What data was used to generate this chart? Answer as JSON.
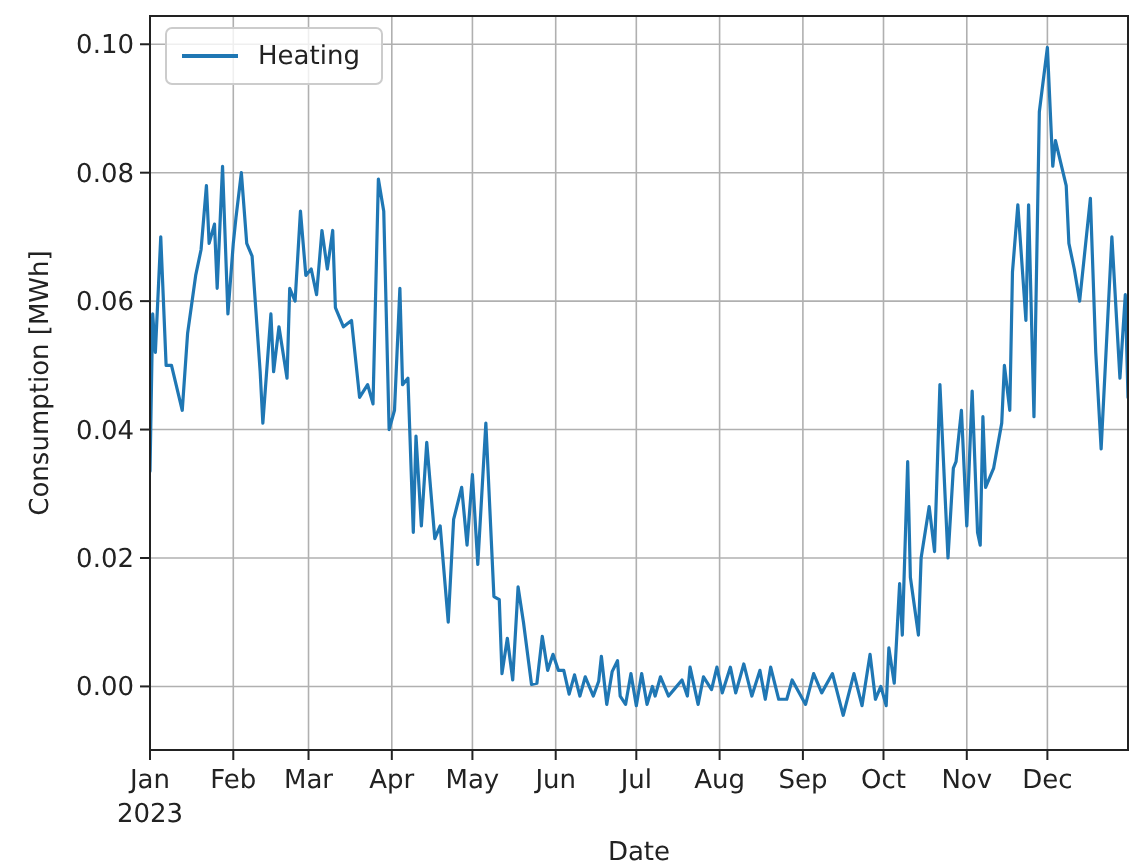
{
  "chart_data": {
    "type": "line",
    "xlabel": "Date",
    "ylabel": "Consumption [MWh]",
    "legend": "top left",
    "grid": true,
    "xlim": [
      "2023-01-01",
      "2023-12-31"
    ],
    "ylim": [
      -0.0099,
      0.1044
    ],
    "xticks": [
      {
        "value": "2023-01-01",
        "label": "Jan\n2023"
      },
      {
        "value": "2023-02-01",
        "label": "Feb"
      },
      {
        "value": "2023-03-01",
        "label": "Mar"
      },
      {
        "value": "2023-04-01",
        "label": "Apr"
      },
      {
        "value": "2023-05-01",
        "label": "May"
      },
      {
        "value": "2023-06-01",
        "label": "Jun"
      },
      {
        "value": "2023-07-01",
        "label": "Jul"
      },
      {
        "value": "2023-08-01",
        "label": "Aug"
      },
      {
        "value": "2023-09-01",
        "label": "Sep"
      },
      {
        "value": "2023-10-01",
        "label": "Oct"
      },
      {
        "value": "2023-11-01",
        "label": "Nov"
      },
      {
        "value": "2023-12-01",
        "label": "Dec"
      }
    ],
    "yticks": [
      {
        "value": 0,
        "label": "0.00"
      },
      {
        "value": 0.02,
        "label": "0.02"
      },
      {
        "value": 0.04,
        "label": "0.04"
      },
      {
        "value": 0.06,
        "label": "0.06"
      },
      {
        "value": 0.08,
        "label": "0.08"
      },
      {
        "value": 0.1,
        "label": "0.10"
      }
    ],
    "x": [
      "2023-01-01",
      "2023-01-02",
      "2023-01-03",
      "2023-01-05",
      "2023-01-07",
      "2023-01-09",
      "2023-01-13",
      "2023-01-15",
      "2023-01-18",
      "2023-01-20",
      "2023-01-22",
      "2023-01-23",
      "2023-01-25",
      "2023-01-26",
      "2023-01-28",
      "2023-01-30",
      "2023-02-01",
      "2023-02-02",
      "2023-02-04",
      "2023-02-06",
      "2023-02-08",
      "2023-02-11",
      "2023-02-12",
      "2023-02-15",
      "2023-02-16",
      "2023-02-18",
      "2023-02-21",
      "2023-02-22",
      "2023-02-24",
      "2023-02-26",
      "2023-02-28",
      "2023-03-02",
      "2023-03-04",
      "2023-03-06",
      "2023-03-08",
      "2023-03-10",
      "2023-03-11",
      "2023-03-14",
      "2023-03-17",
      "2023-03-20",
      "2023-03-23",
      "2023-03-25",
      "2023-03-27",
      "2023-03-29",
      "2023-03-31",
      "2023-04-02",
      "2023-04-04",
      "2023-04-05",
      "2023-04-07",
      "2023-04-09",
      "2023-04-10",
      "2023-04-12",
      "2023-04-14",
      "2023-04-17",
      "2023-04-19",
      "2023-04-22",
      "2023-04-24",
      "2023-04-27",
      "2023-04-29",
      "2023-05-01",
      "2023-05-03",
      "2023-05-06",
      "2023-05-09",
      "2023-05-11",
      "2023-05-12",
      "2023-05-14",
      "2023-05-16",
      "2023-05-18",
      "2023-05-20",
      "2023-05-23",
      "2023-05-25",
      "2023-05-27",
      "2023-05-29",
      "2023-05-31",
      "2023-06-02",
      "2023-06-04",
      "2023-06-06",
      "2023-06-08",
      "2023-06-10",
      "2023-06-12",
      "2023-06-15",
      "2023-06-17",
      "2023-06-18",
      "2023-06-20",
      "2023-06-22",
      "2023-06-24",
      "2023-06-25",
      "2023-06-27",
      "2023-06-29",
      "2023-07-01",
      "2023-07-03",
      "2023-07-05",
      "2023-07-07",
      "2023-07-08",
      "2023-07-10",
      "2023-07-13",
      "2023-07-15",
      "2023-07-18",
      "2023-07-20",
      "2023-07-21",
      "2023-07-24",
      "2023-07-26",
      "2023-07-29",
      "2023-07-31",
      "2023-08-02",
      "2023-08-05",
      "2023-08-07",
      "2023-08-10",
      "2023-08-13",
      "2023-08-16",
      "2023-08-18",
      "2023-08-20",
      "2023-08-23",
      "2023-08-26",
      "2023-08-28",
      "2023-09-02",
      "2023-09-05",
      "2023-09-08",
      "2023-09-12",
      "2023-09-16",
      "2023-09-20",
      "2023-09-23",
      "2023-09-26",
      "2023-09-28",
      "2023-09-30",
      "2023-10-02",
      "2023-10-03",
      "2023-10-05",
      "2023-10-07",
      "2023-10-08",
      "2023-10-10",
      "2023-10-11",
      "2023-10-14",
      "2023-10-15",
      "2023-10-18",
      "2023-10-20",
      "2023-10-22",
      "2023-10-25",
      "2023-10-27",
      "2023-10-28",
      "2023-10-30",
      "2023-11-01",
      "2023-11-03",
      "2023-11-05",
      "2023-11-06",
      "2023-11-07",
      "2023-11-08",
      "2023-11-11",
      "2023-11-14",
      "2023-11-15",
      "2023-11-17",
      "2023-11-18",
      "2023-11-20",
      "2023-11-23",
      "2023-11-24",
      "2023-11-26",
      "2023-11-28",
      "2023-12-01",
      "2023-12-03",
      "2023-12-04",
      "2023-12-08",
      "2023-12-09",
      "2023-12-11",
      "2023-12-13",
      "2023-12-17",
      "2023-12-19",
      "2023-12-21",
      "2023-12-25",
      "2023-12-28",
      "2023-12-30",
      "2023-12-31"
    ],
    "series": [
      {
        "name": "Heating",
        "color": "#1f77b4",
        "values": [
          0.0335,
          0.058,
          0.052,
          0.07,
          0.05,
          0.05,
          0.043,
          0.055,
          0.064,
          0.068,
          0.078,
          0.069,
          0.072,
          0.062,
          0.081,
          0.058,
          0.069,
          0.073,
          0.08,
          0.069,
          0.067,
          0.049,
          0.041,
          0.058,
          0.049,
          0.056,
          0.048,
          0.062,
          0.06,
          0.074,
          0.064,
          0.065,
          0.061,
          0.071,
          0.065,
          0.071,
          0.059,
          0.056,
          0.057,
          0.045,
          0.047,
          0.044,
          0.079,
          0.074,
          0.04,
          0.043,
          0.062,
          0.047,
          0.048,
          0.024,
          0.039,
          0.025,
          0.038,
          0.023,
          0.025,
          0.01,
          0.026,
          0.031,
          0.022,
          0.033,
          0.019,
          0.041,
          0.014,
          0.0135,
          0.002,
          0.0075,
          0.001,
          0.0155,
          0.01,
          0.0003,
          0.0005,
          0.0078,
          0.0025,
          0.005,
          0.0025,
          0.0025,
          -0.0012,
          0.0018,
          -0.0015,
          0.0015,
          -0.0015,
          0.0008,
          0.0047,
          -0.0028,
          0.0023,
          0.004,
          -0.0015,
          -0.0028,
          0.002,
          -0.003,
          0.002,
          -0.0028,
          0,
          -0.0015,
          0.0015,
          -0.0015,
          -0.0005,
          0.001,
          -0.0015,
          0.003,
          -0.0028,
          0.0015,
          -0.0005,
          0.003,
          -0.001,
          0.003,
          -0.001,
          0.0035,
          -0.0015,
          0.0025,
          -0.002,
          0.003,
          -0.002,
          -0.002,
          0.001,
          -0.0028,
          0.002,
          -0.001,
          0.002,
          -0.0045,
          0.002,
          -0.003,
          0.005,
          -0.002,
          0,
          -0.003,
          0.006,
          0.0005,
          0.016,
          0.008,
          0.035,
          0.017,
          0.008,
          0.02,
          0.028,
          0.021,
          0.047,
          0.02,
          0.034,
          0.035,
          0.043,
          0.025,
          0.046,
          0.024,
          0.022,
          0.042,
          0.031,
          0.034,
          0.041,
          0.05,
          0.043,
          0.0645,
          0.075,
          0.057,
          0.075,
          0.042,
          0.0895,
          0.0995,
          0.081,
          0.085,
          0.078,
          0.069,
          0.065,
          0.06,
          0.076,
          0.052,
          0.037,
          0.07,
          0.048,
          0.061,
          0.045
        ]
      }
    ]
  }
}
